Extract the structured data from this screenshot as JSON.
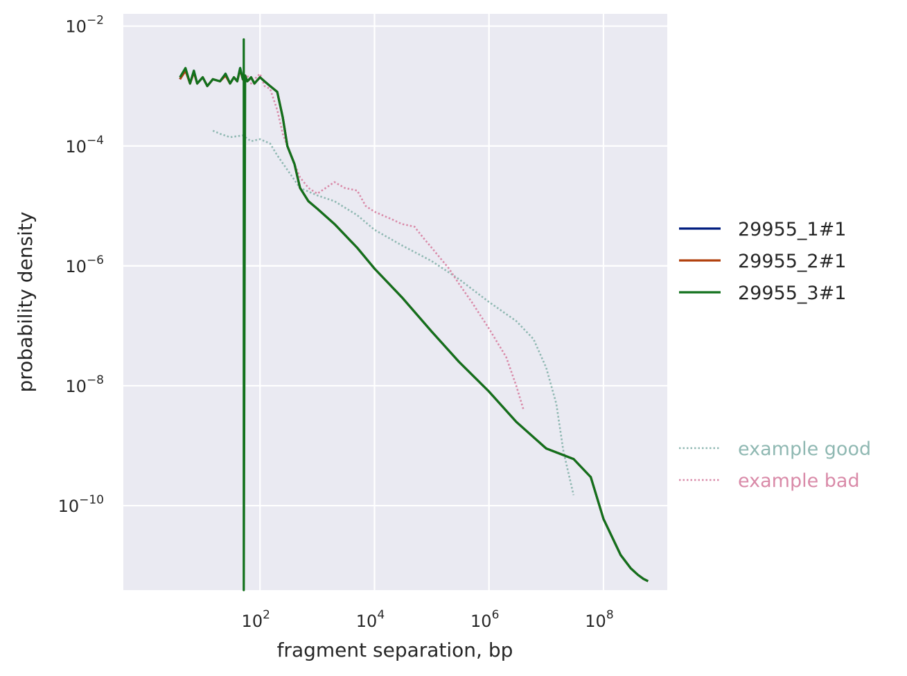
{
  "chart_data": {
    "type": "line",
    "title": "",
    "xlabel": "fragment separation, bp",
    "ylabel": "probability density",
    "xscale": "log",
    "yscale": "log",
    "xlim": [
      0.41,
      1300000000.0
    ],
    "ylim": [
      3.9e-12,
      0.016
    ],
    "xticks": [
      {
        "base": "10",
        "exp": "2",
        "value": 100.0
      },
      {
        "base": "10",
        "exp": "4",
        "value": 10000.0
      },
      {
        "base": "10",
        "exp": "6",
        "value": 1000000.0
      },
      {
        "base": "10",
        "exp": "8",
        "value": 100000000.0
      }
    ],
    "yticks": [
      {
        "base": "10",
        "exp": "−2",
        "value": 0.01
      },
      {
        "base": "10",
        "exp": "−4",
        "value": 0.0001
      },
      {
        "base": "10",
        "exp": "−6",
        "value": 1e-06
      },
      {
        "base": "10",
        "exp": "−8",
        "value": 1e-08
      },
      {
        "base": "10",
        "exp": "−10",
        "value": 1e-10
      }
    ],
    "grid": true,
    "legend_position": "right",
    "series": [
      {
        "name": "29955_1#1",
        "color": "#001c7f",
        "style": "solid",
        "x": [
          4,
          5,
          6,
          7,
          8,
          10,
          12,
          15,
          20,
          25,
          30,
          35,
          40,
          45,
          50,
          55,
          60,
          70,
          80,
          100,
          120,
          150,
          200,
          250,
          300,
          400,
          500,
          700,
          1000,
          2000,
          5000,
          10000.0,
          30000.0,
          100000.0,
          300000.0,
          1000000.0,
          3000000.0,
          10000000.0,
          30000000.0,
          60000000.0,
          100000000.0,
          200000000.0,
          300000000.0,
          400000000.0,
          500000000.0,
          600000000.0
        ],
        "y": [
          0.0013,
          0.0019,
          0.0011,
          0.0018,
          0.0011,
          0.0014,
          0.001,
          0.0013,
          0.0012,
          0.0016,
          0.0011,
          0.0014,
          0.0012,
          0.002,
          0.0013,
          0.0015,
          0.0012,
          0.0014,
          0.0011,
          0.0014,
          0.0012,
          0.001,
          0.0008,
          0.0003,
          0.0001,
          5e-05,
          2e-05,
          1.2e-05,
          9e-06,
          5e-06,
          2e-06,
          9e-07,
          3e-07,
          8e-08,
          2.5e-08,
          8e-09,
          2.5e-09,
          9e-10,
          6e-10,
          3e-10,
          6e-11,
          1.5e-11,
          9e-12,
          7e-12,
          6e-12,
          5.5e-12
        ]
      },
      {
        "name": "29955_2#1",
        "color": "#b1400d",
        "style": "solid",
        "x": [
          4,
          5,
          6,
          7,
          8,
          10,
          12,
          15,
          20,
          25,
          30,
          35,
          40,
          45,
          50,
          55,
          60,
          70,
          80,
          100,
          120,
          150,
          200,
          250,
          300,
          400,
          500,
          700,
          1000,
          2000,
          5000,
          10000.0,
          30000.0,
          100000.0,
          300000.0,
          1000000.0,
          3000000.0,
          10000000.0,
          30000000.0,
          60000000.0,
          100000000.0,
          200000000.0,
          300000000.0,
          400000000.0,
          500000000.0,
          600000000.0
        ],
        "y": [
          0.0013,
          0.0018,
          0.0011,
          0.0017,
          0.0011,
          0.0014,
          0.001,
          0.0013,
          0.0012,
          0.0015,
          0.0011,
          0.0014,
          0.0012,
          0.0019,
          0.0013,
          0.0015,
          0.0012,
          0.0014,
          0.0011,
          0.0014,
          0.0012,
          0.001,
          0.0008,
          0.0003,
          0.0001,
          5e-05,
          2e-05,
          1.2e-05,
          9e-06,
          5e-06,
          2e-06,
          9e-07,
          3e-07,
          8e-08,
          2.5e-08,
          8e-09,
          2.5e-09,
          9e-10,
          6e-10,
          3e-10,
          6e-11,
          1.5e-11,
          9e-12,
          7e-12,
          6e-12,
          5.5e-12
        ]
      },
      {
        "name": "29955_3#1",
        "color": "#12711c",
        "style": "solid",
        "x": [
          4,
          5,
          6,
          7,
          8,
          10,
          12,
          15,
          20,
          25,
          30,
          35,
          40,
          45,
          50,
          52,
          52,
          52,
          55,
          60,
          70,
          80,
          100,
          120,
          150,
          200,
          250,
          300,
          400,
          500,
          700,
          1000,
          2000,
          5000,
          10000.0,
          30000.0,
          100000.0,
          300000.0,
          1000000.0,
          3000000.0,
          10000000.0,
          30000000.0,
          60000000.0,
          100000000.0,
          200000000.0,
          300000000.0,
          400000000.0,
          500000000.0,
          600000000.0
        ],
        "y": [
          0.0014,
          0.002,
          0.0011,
          0.0018,
          0.0011,
          0.0014,
          0.001,
          0.0013,
          0.0012,
          0.0016,
          0.0011,
          0.0014,
          0.0012,
          0.002,
          0.0013,
          0.0013,
          0.006,
          3.9e-12,
          0.0015,
          0.0012,
          0.0014,
          0.0011,
          0.0014,
          0.0012,
          0.001,
          0.0008,
          0.0003,
          0.0001,
          5e-05,
          2e-05,
          1.2e-05,
          9e-06,
          5e-06,
          2e-06,
          9e-07,
          3e-07,
          8e-08,
          2.5e-08,
          8e-09,
          2.5e-09,
          9e-10,
          6e-10,
          3e-10,
          6e-11,
          1.5e-11,
          9e-12,
          7e-12,
          6e-12,
          5.5e-12
        ]
      },
      {
        "name": "example good",
        "color": "#8fb8b2",
        "style": "dotted",
        "x": [
          15,
          20,
          30,
          50,
          70,
          100,
          150,
          200,
          300,
          500,
          1000,
          2000,
          5000,
          10000.0,
          30000.0,
          100000.0,
          300000.0,
          1000000.0,
          3000000.0,
          6000000.0,
          10000000.0,
          15000000.0,
          20000000.0,
          30000000.0
        ],
        "y": [
          0.00018,
          0.00016,
          0.00014,
          0.00015,
          0.00012,
          0.00013,
          0.00011,
          7e-05,
          4e-05,
          2e-05,
          1.5e-05,
          1.2e-05,
          7e-06,
          4e-06,
          2.2e-06,
          1.2e-06,
          6e-07,
          2.5e-07,
          1.2e-07,
          6e-08,
          2e-08,
          5e-09,
          8e-10,
          1.5e-10
        ]
      },
      {
        "name": "example bad",
        "color": "#d98aa8",
        "style": "dotted",
        "x": [
          50,
          60,
          70,
          80,
          100,
          120,
          150,
          200,
          250,
          300,
          400,
          500,
          700,
          1000,
          2000,
          3000,
          5000,
          7000,
          10000.0,
          20000.0,
          30000.0,
          50000.0,
          70000.0,
          100000.0,
          200000.0,
          300000.0,
          500000.0,
          1000000.0,
          2000000.0,
          3000000.0,
          4000000.0
        ],
        "y": [
          0.0012,
          0.0015,
          0.0011,
          0.0013,
          0.0016,
          0.001,
          0.0009,
          0.0004,
          0.00016,
          0.0001,
          5e-05,
          3e-05,
          2e-05,
          1.6e-05,
          2.5e-05,
          2e-05,
          1.8e-05,
          1e-05,
          8e-06,
          6e-06,
          5e-06,
          4.5e-06,
          3e-06,
          2e-06,
          9e-07,
          5e-07,
          2.5e-07,
          9e-08,
          3e-08,
          1e-08,
          4e-09
        ]
      }
    ],
    "legend_groups": [
      [
        "29955_1#1",
        "29955_2#1",
        "29955_3#1"
      ],
      [
        "example good",
        "example bad"
      ]
    ]
  }
}
